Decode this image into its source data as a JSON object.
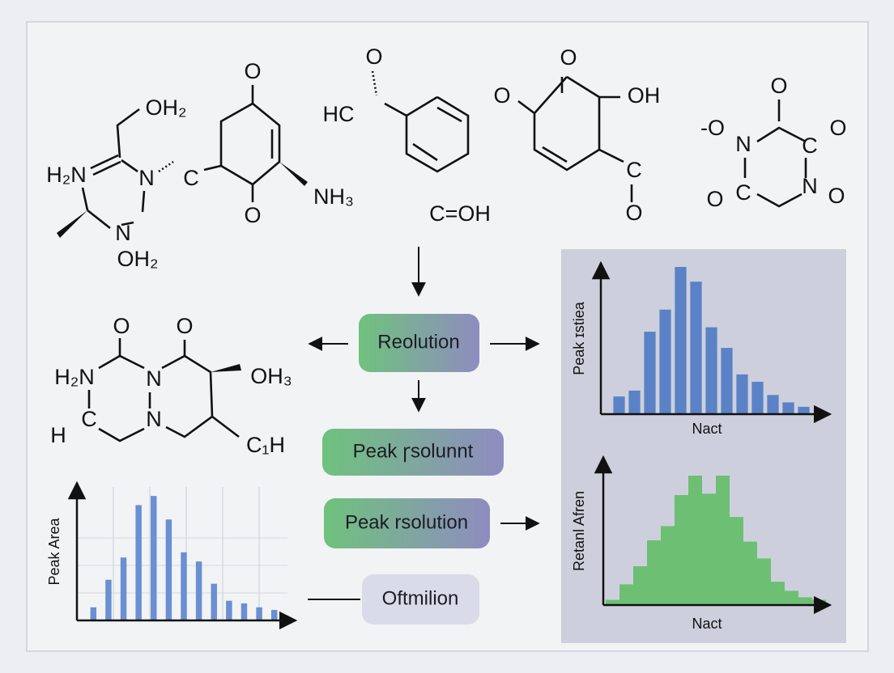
{
  "molecules": [
    {
      "labels": [
        "OH₂",
        "H₂N",
        "N",
        "N",
        "OH₂"
      ]
    },
    {
      "labels": [
        "O",
        "C",
        "O",
        "NH₃"
      ]
    },
    {
      "labels": [
        "O",
        "HC",
        "C=OH"
      ]
    },
    {
      "labels": [
        "O",
        "O",
        "OH",
        "C",
        "O"
      ]
    },
    {
      "labels": [
        "O",
        "-O",
        "N",
        "C",
        "O",
        "O",
        "C",
        "N",
        "O"
      ]
    },
    {
      "labels": [
        "O",
        "O",
        "H₂N",
        "N",
        "N",
        "OH₃",
        "H",
        "C",
        "N",
        "C₁H"
      ]
    }
  ],
  "flow": {
    "boxes": [
      "Reolution",
      "Peak ꞅsolunnt",
      "Peak rsolution",
      "Oftmilion"
    ]
  },
  "charts": [
    {
      "type": "bar",
      "ylabel": "Peak ɪstiea",
      "xlabel": "Nact",
      "color": "#5b82c6",
      "ylim": [
        0,
        100
      ],
      "values": [
        12,
        16,
        56,
        71,
        100,
        90,
        59,
        45,
        27,
        22,
        13,
        8,
        5
      ]
    },
    {
      "type": "bar",
      "ylabel": "Retanl Afren",
      "xlabel": "Nact",
      "color": "#6dbf73",
      "ylim": [
        0,
        100
      ],
      "values": [
        4,
        16,
        30,
        50,
        61,
        85,
        100,
        86,
        100,
        68,
        49,
        36,
        18,
        11,
        6,
        4
      ]
    },
    {
      "type": "bar",
      "ylabel": "Peak Area",
      "color": "#6a8fd2",
      "ylim": [
        0,
        100
      ],
      "values": [
        10,
        31,
        48,
        88,
        95,
        77,
        52,
        45,
        28,
        15,
        13,
        10,
        8
      ]
    }
  ]
}
